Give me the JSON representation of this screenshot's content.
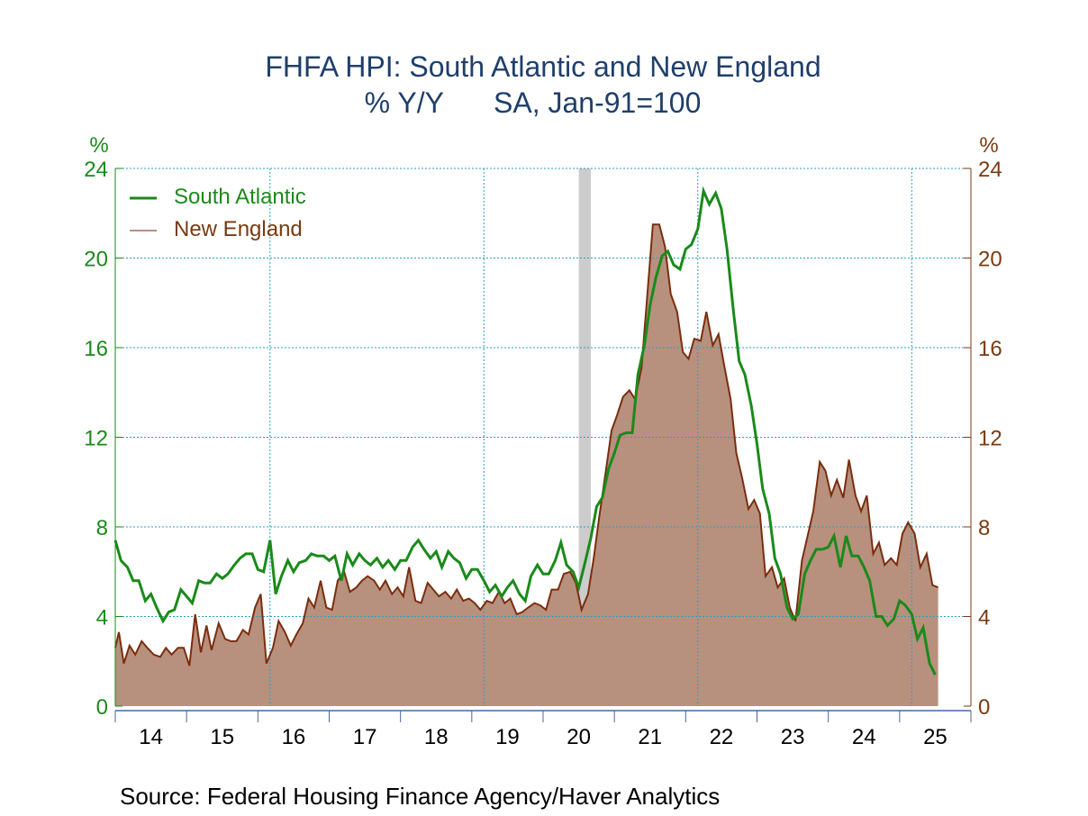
{
  "colors": {
    "south_atlantic": "#1a8a1a",
    "new_england_line": "#7a2e0e",
    "new_england_fill": "#b8907e",
    "left_axis": "#1a8a1a",
    "right_axis": "#7a3a10",
    "title": "#1f3f6b",
    "grid": "#2a9fc0",
    "recession": "#cccccc"
  },
  "chart_data": {
    "type": "line",
    "title": "FHFA HPI: South Atlantic and New England",
    "subtitle_left": "% Y/Y",
    "subtitle_right": "SA, Jan-91=100",
    "left_unit": "%",
    "right_unit": "%",
    "ylim": [
      0,
      24
    ],
    "yticks": [
      "0",
      "4",
      "8",
      "12",
      "16",
      "20",
      "24"
    ],
    "xlim": [
      2013.5,
      2025.5
    ],
    "xticks": [
      "14",
      "15",
      "16",
      "17",
      "18",
      "19",
      "20",
      "21",
      "22",
      "23",
      "24",
      "25"
    ],
    "grid": true,
    "legend_position": "top-left",
    "recession_shading": [
      2020.0,
      2020.17
    ],
    "series": [
      {
        "name": "South Atlantic",
        "style": "line",
        "points": [
          [
            2013.5,
            7.4
          ],
          [
            2013.58,
            6.5
          ],
          [
            2013.67,
            6.2
          ],
          [
            2013.75,
            5.6
          ],
          [
            2013.83,
            5.6
          ],
          [
            2013.92,
            4.7
          ],
          [
            2014.0,
            5.0
          ],
          [
            2014.08,
            4.4
          ],
          [
            2014.17,
            3.8
          ],
          [
            2014.25,
            4.2
          ],
          [
            2014.33,
            4.3
          ],
          [
            2014.42,
            5.2
          ],
          [
            2014.5,
            4.9
          ],
          [
            2014.58,
            4.6
          ],
          [
            2014.67,
            5.6
          ],
          [
            2014.75,
            5.5
          ],
          [
            2014.83,
            5.5
          ],
          [
            2014.92,
            5.9
          ],
          [
            2015.0,
            5.7
          ],
          [
            2015.08,
            5.9
          ],
          [
            2015.17,
            6.3
          ],
          [
            2015.25,
            6.6
          ],
          [
            2015.33,
            6.8
          ],
          [
            2015.42,
            6.8
          ],
          [
            2015.5,
            6.1
          ],
          [
            2015.58,
            6.0
          ],
          [
            2015.67,
            7.4
          ],
          [
            2015.75,
            5.0
          ],
          [
            2015.83,
            5.8
          ],
          [
            2015.92,
            6.5
          ],
          [
            2016.0,
            6.0
          ],
          [
            2016.08,
            6.4
          ],
          [
            2016.17,
            6.5
          ],
          [
            2016.25,
            6.8
          ],
          [
            2016.33,
            6.7
          ],
          [
            2016.42,
            6.7
          ],
          [
            2016.5,
            6.5
          ],
          [
            2016.58,
            6.7
          ],
          [
            2016.67,
            5.6
          ],
          [
            2016.75,
            6.8
          ],
          [
            2016.83,
            6.3
          ],
          [
            2016.92,
            6.8
          ],
          [
            2017.0,
            6.5
          ],
          [
            2017.08,
            6.3
          ],
          [
            2017.17,
            6.6
          ],
          [
            2017.25,
            6.2
          ],
          [
            2017.33,
            6.5
          ],
          [
            2017.42,
            6.1
          ],
          [
            2017.5,
            6.5
          ],
          [
            2017.58,
            6.5
          ],
          [
            2017.67,
            7.1
          ],
          [
            2017.75,
            7.4
          ],
          [
            2017.83,
            7.0
          ],
          [
            2017.92,
            6.6
          ],
          [
            2018.0,
            6.9
          ],
          [
            2018.08,
            6.2
          ],
          [
            2018.17,
            6.9
          ],
          [
            2018.25,
            6.6
          ],
          [
            2018.33,
            6.4
          ],
          [
            2018.42,
            5.7
          ],
          [
            2018.5,
            6.1
          ],
          [
            2018.58,
            6.1
          ],
          [
            2018.67,
            5.6
          ],
          [
            2018.75,
            5.1
          ],
          [
            2018.83,
            5.4
          ],
          [
            2018.92,
            4.9
          ],
          [
            2019.0,
            5.3
          ],
          [
            2019.08,
            5.6
          ],
          [
            2019.17,
            5.0
          ],
          [
            2019.25,
            4.7
          ],
          [
            2019.33,
            5.8
          ],
          [
            2019.42,
            6.3
          ],
          [
            2019.5,
            5.9
          ],
          [
            2019.58,
            5.9
          ],
          [
            2019.67,
            6.5
          ],
          [
            2019.75,
            7.3
          ],
          [
            2019.83,
            6.3
          ],
          [
            2019.92,
            6.0
          ],
          [
            2020.0,
            5.3
          ],
          [
            2020.08,
            6.3
          ],
          [
            2020.17,
            7.5
          ],
          [
            2020.25,
            8.9
          ],
          [
            2020.33,
            9.3
          ],
          [
            2020.42,
            10.6
          ],
          [
            2020.5,
            11.3
          ],
          [
            2020.58,
            12.1
          ],
          [
            2020.67,
            12.2
          ],
          [
            2020.75,
            12.2
          ],
          [
            2020.83,
            14.8
          ],
          [
            2020.92,
            16.1
          ],
          [
            2021.0,
            17.9
          ],
          [
            2021.08,
            19.1
          ],
          [
            2021.17,
            20.1
          ],
          [
            2021.25,
            20.3
          ],
          [
            2021.33,
            19.7
          ],
          [
            2021.42,
            19.5
          ],
          [
            2021.5,
            20.4
          ],
          [
            2021.58,
            20.6
          ],
          [
            2021.67,
            21.3
          ],
          [
            2021.75,
            23.0
          ],
          [
            2021.83,
            22.4
          ],
          [
            2021.92,
            22.9
          ],
          [
            2022.0,
            22.2
          ],
          [
            2022.08,
            20.4
          ],
          [
            2022.17,
            17.6
          ],
          [
            2022.25,
            15.4
          ],
          [
            2022.33,
            14.8
          ],
          [
            2022.42,
            13.4
          ],
          [
            2022.5,
            11.7
          ],
          [
            2022.58,
            9.7
          ],
          [
            2022.67,
            8.6
          ],
          [
            2022.75,
            6.6
          ],
          [
            2022.83,
            5.9
          ],
          [
            2022.92,
            4.4
          ],
          [
            2023.0,
            3.9
          ],
          [
            2023.08,
            4.1
          ],
          [
            2023.17,
            5.9
          ],
          [
            2023.25,
            6.5
          ],
          [
            2023.33,
            7.0
          ],
          [
            2023.42,
            7.0
          ],
          [
            2023.5,
            7.1
          ],
          [
            2023.58,
            7.6
          ],
          [
            2023.67,
            6.2
          ],
          [
            2023.75,
            7.6
          ],
          [
            2023.83,
            6.7
          ],
          [
            2023.92,
            6.7
          ],
          [
            2024.0,
            6.2
          ],
          [
            2024.08,
            5.6
          ],
          [
            2024.17,
            4.0
          ],
          [
            2024.25,
            4.0
          ],
          [
            2024.33,
            3.6
          ],
          [
            2024.42,
            3.9
          ],
          [
            2024.5,
            4.7
          ],
          [
            2024.58,
            4.5
          ],
          [
            2024.67,
            4.1
          ],
          [
            2024.75,
            3.0
          ],
          [
            2024.83,
            3.5
          ],
          [
            2024.92,
            1.9
          ],
          [
            2025.0,
            1.4
          ]
        ]
      },
      {
        "name": "New England",
        "style": "area",
        "points": [
          [
            2013.5,
            2.6
          ],
          [
            2013.55,
            3.3
          ],
          [
            2013.62,
            1.9
          ],
          [
            2013.7,
            2.7
          ],
          [
            2013.78,
            2.3
          ],
          [
            2013.87,
            2.9
          ],
          [
            2013.95,
            2.6
          ],
          [
            2014.04,
            2.3
          ],
          [
            2014.13,
            2.2
          ],
          [
            2014.21,
            2.6
          ],
          [
            2014.29,
            2.3
          ],
          [
            2014.38,
            2.6
          ],
          [
            2014.46,
            2.6
          ],
          [
            2014.54,
            1.8
          ],
          [
            2014.62,
            4.1
          ],
          [
            2014.7,
            2.4
          ],
          [
            2014.78,
            3.6
          ],
          [
            2014.85,
            2.5
          ],
          [
            2014.95,
            3.7
          ],
          [
            2015.04,
            3.0
          ],
          [
            2015.12,
            2.9
          ],
          [
            2015.2,
            2.9
          ],
          [
            2015.29,
            3.4
          ],
          [
            2015.37,
            3.2
          ],
          [
            2015.46,
            4.4
          ],
          [
            2015.54,
            5.0
          ],
          [
            2015.62,
            1.9
          ],
          [
            2015.71,
            2.6
          ],
          [
            2015.79,
            3.8
          ],
          [
            2015.88,
            3.3
          ],
          [
            2015.96,
            2.7
          ],
          [
            2016.04,
            3.2
          ],
          [
            2016.13,
            3.7
          ],
          [
            2016.21,
            4.8
          ],
          [
            2016.29,
            4.4
          ],
          [
            2016.38,
            5.6
          ],
          [
            2016.46,
            4.4
          ],
          [
            2016.54,
            4.3
          ],
          [
            2016.62,
            5.6
          ],
          [
            2016.71,
            6.0
          ],
          [
            2016.79,
            5.1
          ],
          [
            2016.88,
            5.3
          ],
          [
            2016.96,
            5.6
          ],
          [
            2017.04,
            5.8
          ],
          [
            2017.13,
            5.6
          ],
          [
            2017.21,
            5.2
          ],
          [
            2017.29,
            5.6
          ],
          [
            2017.38,
            5.0
          ],
          [
            2017.46,
            5.3
          ],
          [
            2017.54,
            4.9
          ],
          [
            2017.62,
            6.2
          ],
          [
            2017.71,
            4.7
          ],
          [
            2017.79,
            4.6
          ],
          [
            2017.88,
            5.5
          ],
          [
            2017.96,
            5.2
          ],
          [
            2018.04,
            4.9
          ],
          [
            2018.13,
            5.1
          ],
          [
            2018.21,
            4.8
          ],
          [
            2018.29,
            5.2
          ],
          [
            2018.38,
            4.7
          ],
          [
            2018.46,
            4.8
          ],
          [
            2018.54,
            4.6
          ],
          [
            2018.62,
            4.3
          ],
          [
            2018.71,
            4.7
          ],
          [
            2018.79,
            4.6
          ],
          [
            2018.88,
            5.1
          ],
          [
            2018.96,
            4.6
          ],
          [
            2019.04,
            4.8
          ],
          [
            2019.13,
            4.1
          ],
          [
            2019.21,
            4.2
          ],
          [
            2019.29,
            4.4
          ],
          [
            2019.38,
            4.6
          ],
          [
            2019.46,
            4.5
          ],
          [
            2019.54,
            4.3
          ],
          [
            2019.62,
            5.2
          ],
          [
            2019.71,
            5.2
          ],
          [
            2019.79,
            5.9
          ],
          [
            2019.88,
            6.0
          ],
          [
            2019.96,
            5.5
          ],
          [
            2020.04,
            4.3
          ],
          [
            2020.13,
            5.0
          ],
          [
            2020.21,
            6.6
          ],
          [
            2020.29,
            8.5
          ],
          [
            2020.38,
            10.5
          ],
          [
            2020.46,
            12.3
          ],
          [
            2020.54,
            13.0
          ],
          [
            2020.62,
            13.8
          ],
          [
            2020.71,
            14.1
          ],
          [
            2020.79,
            13.7
          ],
          [
            2020.88,
            15.1
          ],
          [
            2020.96,
            18.3
          ],
          [
            2021.04,
            21.5
          ],
          [
            2021.13,
            21.5
          ],
          [
            2021.21,
            20.5
          ],
          [
            2021.29,
            18.4
          ],
          [
            2021.38,
            17.6
          ],
          [
            2021.46,
            15.8
          ],
          [
            2021.54,
            15.5
          ],
          [
            2021.62,
            16.4
          ],
          [
            2021.71,
            16.3
          ],
          [
            2021.79,
            17.6
          ],
          [
            2021.88,
            16.1
          ],
          [
            2021.96,
            16.6
          ],
          [
            2022.04,
            15.2
          ],
          [
            2022.13,
            13.7
          ],
          [
            2022.21,
            11.3
          ],
          [
            2022.29,
            10.2
          ],
          [
            2022.38,
            8.8
          ],
          [
            2022.46,
            9.2
          ],
          [
            2022.54,
            8.6
          ],
          [
            2022.62,
            5.8
          ],
          [
            2022.71,
            6.2
          ],
          [
            2022.79,
            5.3
          ],
          [
            2022.88,
            5.7
          ],
          [
            2022.96,
            4.4
          ],
          [
            2023.04,
            3.8
          ],
          [
            2023.13,
            6.5
          ],
          [
            2023.21,
            7.6
          ],
          [
            2023.29,
            8.7
          ],
          [
            2023.38,
            10.9
          ],
          [
            2023.46,
            10.5
          ],
          [
            2023.54,
            9.4
          ],
          [
            2023.62,
            10.1
          ],
          [
            2023.71,
            9.3
          ],
          [
            2023.79,
            11.0
          ],
          [
            2023.88,
            9.4
          ],
          [
            2023.96,
            8.7
          ],
          [
            2024.04,
            9.4
          ],
          [
            2024.13,
            6.8
          ],
          [
            2024.21,
            7.3
          ],
          [
            2024.29,
            6.3
          ],
          [
            2024.38,
            6.6
          ],
          [
            2024.46,
            6.3
          ],
          [
            2024.54,
            7.7
          ],
          [
            2024.62,
            8.2
          ],
          [
            2024.71,
            7.7
          ],
          [
            2024.79,
            6.2
          ],
          [
            2024.88,
            6.8
          ],
          [
            2024.96,
            5.4
          ],
          [
            2025.04,
            5.3
          ]
        ]
      }
    ]
  },
  "source_text": "Source:  Federal Housing Finance Agency/Haver Analytics"
}
